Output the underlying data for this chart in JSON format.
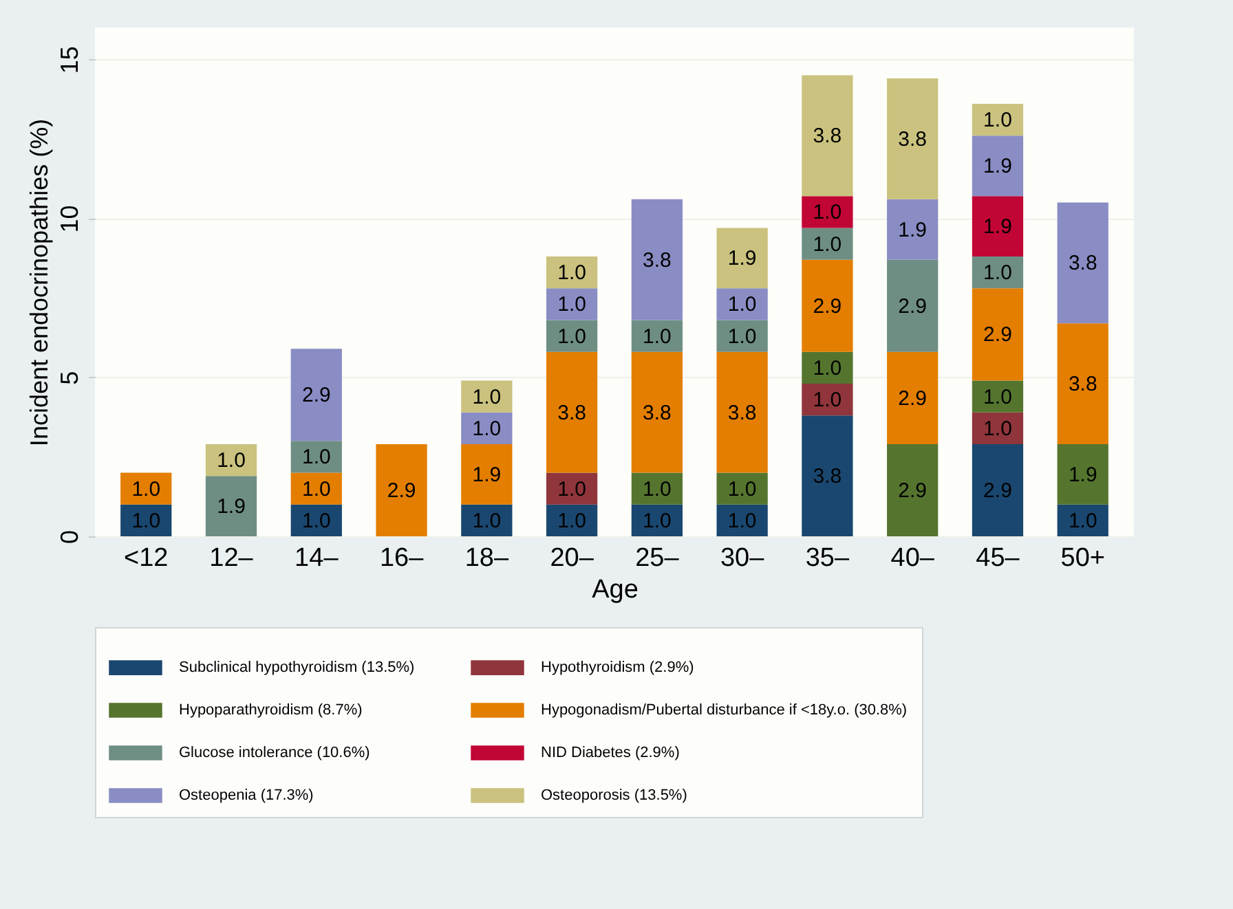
{
  "chart_data": {
    "type": "bar",
    "stacked": true,
    "xlabel": "Age",
    "ylabel": "Incident endocrinopathies (%)",
    "categories": [
      "<12",
      "12–",
      "14–",
      "16–",
      "18–",
      "20–",
      "25–",
      "30–",
      "35–",
      "40–",
      "45–",
      "50+"
    ],
    "ylim": [
      0,
      16
    ],
    "yticks": [
      0,
      5,
      10,
      15
    ],
    "grid": "y",
    "legend": "bottom",
    "series": [
      {
        "name": "Subclinical hypothyroidism (13.5%)",
        "color": "#1a476f",
        "values": [
          1.0,
          null,
          1.0,
          null,
          1.0,
          1.0,
          1.0,
          1.0,
          3.8,
          null,
          2.9,
          1.0
        ],
        "value_labels": [
          "1.0",
          null,
          "1.0",
          null,
          "1.0",
          "1.0",
          "1.0",
          "1.0",
          "3.8",
          null,
          "2.9",
          "1.0"
        ]
      },
      {
        "name": "Hypothyroidism (2.9%)",
        "color": "#90353b",
        "values": [
          null,
          null,
          null,
          null,
          null,
          1.0,
          null,
          null,
          1.0,
          null,
          1.0,
          null
        ],
        "value_labels": [
          null,
          null,
          null,
          null,
          null,
          "1.0",
          null,
          null,
          "1.0",
          null,
          "1.0",
          null
        ]
      },
      {
        "name": "Hypoparathyroidism (8.7%)",
        "color": "#55752f",
        "values": [
          null,
          null,
          null,
          null,
          null,
          null,
          1.0,
          1.0,
          1.0,
          2.9,
          1.0,
          1.9
        ],
        "value_labels": [
          null,
          null,
          null,
          null,
          null,
          null,
          "1.0",
          "1.0",
          "1.0",
          "2.9",
          "1.0",
          "1.9"
        ]
      },
      {
        "name": "Hypogonadism/Pubertal disturbance if <18y.o. (30.8%)",
        "color": "#e37e00",
        "values": [
          1.0,
          null,
          1.0,
          2.9,
          1.9,
          3.8,
          3.8,
          3.8,
          2.9,
          2.9,
          2.9,
          3.8
        ],
        "value_labels": [
          "1.0",
          null,
          "1.0",
          "2.9",
          "1.9",
          "3.8",
          "3.8",
          "3.8",
          "2.9",
          "2.9",
          "2.9",
          "3.8"
        ]
      },
      {
        "name": "Glucose intolerance (10.6%)",
        "color": "#6e8e84",
        "values": [
          null,
          1.9,
          1.0,
          null,
          null,
          1.0,
          1.0,
          1.0,
          1.0,
          2.9,
          1.0,
          null
        ],
        "value_labels": [
          null,
          "1.9",
          "1.0",
          null,
          null,
          "1.0",
          "1.0",
          "1.0",
          "1.0",
          "2.9",
          "1.0",
          null
        ]
      },
      {
        "name": "NID Diabetes (2.9%)",
        "color": "#c10534",
        "values": [
          null,
          null,
          null,
          null,
          null,
          null,
          null,
          null,
          1.0,
          null,
          1.9,
          null
        ],
        "value_labels": [
          null,
          null,
          null,
          null,
          null,
          null,
          null,
          null,
          "1.0",
          null,
          "1.9",
          null
        ]
      },
      {
        "name": "Osteopenia (17.3%)",
        "color": "#8a8dc4",
        "values": [
          null,
          null,
          2.9,
          null,
          1.0,
          1.0,
          3.8,
          1.0,
          null,
          1.9,
          1.9,
          3.8
        ],
        "value_labels": [
          null,
          null,
          "2.9",
          null,
          "1.0",
          "1.0",
          "3.8",
          "1.0",
          null,
          "1.9",
          "1.9",
          "3.8"
        ]
      },
      {
        "name": "Osteoporosis (13.5%)",
        "color": "#cac27e",
        "values": [
          null,
          1.0,
          null,
          null,
          1.0,
          1.0,
          null,
          1.9,
          3.8,
          3.8,
          1.0,
          null
        ],
        "value_labels": [
          null,
          "1.0",
          null,
          null,
          "1.0",
          "1.0",
          null,
          "1.9",
          "3.8",
          "3.8",
          "1.0",
          null
        ]
      }
    ]
  }
}
